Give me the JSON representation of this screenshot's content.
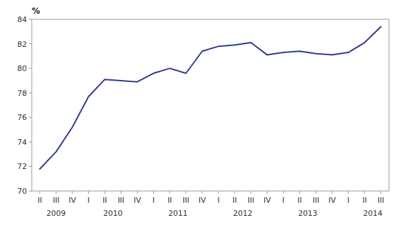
{
  "chart_data": {
    "type": "line",
    "y_label": "%",
    "categories": [
      "II",
      "III",
      "IV",
      "I",
      "II",
      "III",
      "IV",
      "I",
      "II",
      "III",
      "IV",
      "I",
      "II",
      "III",
      "IV",
      "I",
      "II",
      "III",
      "IV",
      "I",
      "II",
      "III"
    ],
    "values": [
      71.8,
      73.2,
      75.2,
      77.7,
      79.1,
      79.0,
      78.9,
      79.6,
      80.0,
      79.6,
      81.4,
      81.8,
      81.9,
      82.1,
      81.1,
      81.3,
      81.4,
      81.2,
      81.1,
      81.3,
      82.1,
      83.4
    ],
    "color": "#2E3A8C",
    "ylim": [
      70,
      84
    ],
    "yticks": [
      70,
      72,
      74,
      76,
      78,
      80,
      82,
      84
    ],
    "grid": false,
    "annotations": [
      {
        "text": "2009",
        "x": 1.0
      },
      {
        "text": "2010",
        "x": 4.5
      },
      {
        "text": "2011",
        "x": 8.5
      },
      {
        "text": "2012",
        "x": 12.5
      },
      {
        "text": "2013",
        "x": 16.5
      },
      {
        "text": "2014",
        "x": 20.5
      }
    ]
  }
}
